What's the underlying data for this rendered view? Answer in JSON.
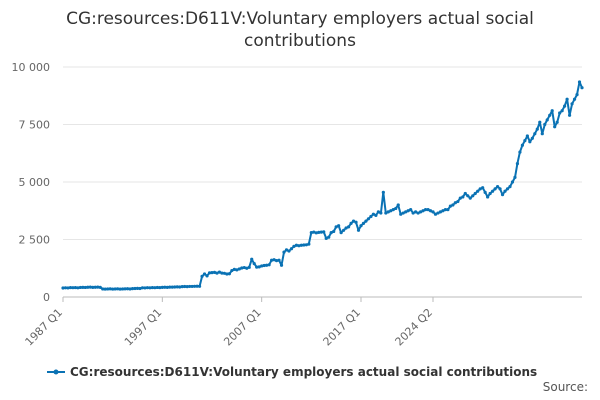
{
  "chart_data": {
    "type": "line",
    "title": "CG:resources:D611V:Voluntary employers actual social contributions",
    "title_lines": [
      "CG:resources:D611V:Voluntary employers actual social",
      "contributions"
    ],
    "xlabel": "",
    "ylabel": "",
    "x_start": "1987 Q1",
    "x_ticks": [
      "1987 Q1",
      "1997 Q1",
      "2007 Q1",
      "2017 Q1",
      "2024 Q2"
    ],
    "y_ticks": [
      "0",
      "2 500",
      "5 000",
      "7 500",
      "10 000"
    ],
    "y_tick_values": [
      0,
      2500,
      5000,
      7500,
      10000
    ],
    "ylim": [
      0,
      10000
    ],
    "grid": true,
    "legend_position": "bottom",
    "series": [
      {
        "name": "CG:resources:D611V:Voluntary employers actual social contributions",
        "color": "#0a72b4",
        "values": [
          390,
          400,
          395,
          410,
          405,
          410,
          400,
          415,
          420,
          415,
          425,
          430,
          420,
          425,
          430,
          420,
          350,
          345,
          350,
          355,
          345,
          350,
          355,
          345,
          350,
          355,
          360,
          350,
          365,
          370,
          375,
          370,
          400,
          395,
          405,
          400,
          410,
          405,
          415,
          410,
          420,
          425,
          420,
          430,
          430,
          435,
          440,
          435,
          450,
          455,
          450,
          460,
          460,
          465,
          470,
          465,
          900,
          1000,
          920,
          1050,
          1060,
          1070,
          1040,
          1080,
          1040,
          1030,
          1000,
          1010,
          1150,
          1200,
          1180,
          1220,
          1260,
          1280,
          1250,
          1290,
          1640,
          1450,
          1300,
          1310,
          1350,
          1370,
          1380,
          1400,
          1600,
          1620,
          1580,
          1600,
          1380,
          1950,
          2050,
          2000,
          2100,
          2200,
          2250,
          2230,
          2250,
          2260,
          2270,
          2300,
          2800,
          2820,
          2790,
          2810,
          2820,
          2830,
          2550,
          2600,
          2800,
          2850,
          3050,
          3100,
          2800,
          2900,
          3000,
          3050,
          3200,
          3300,
          3250,
          2900,
          3100,
          3200,
          3300,
          3400,
          3500,
          3600,
          3550,
          3700,
          3650,
          4550,
          3650,
          3700,
          3750,
          3800,
          3850,
          4000,
          3600,
          3650,
          3700,
          3750,
          3800,
          3650,
          3700,
          3650,
          3700,
          3750,
          3800,
          3800,
          3750,
          3700,
          3600,
          3650,
          3700,
          3750,
          3800,
          3800,
          3950,
          4000,
          4100,
          4150,
          4300,
          4350,
          4500,
          4400,
          4300,
          4400,
          4500,
          4600,
          4700,
          4750,
          4550,
          4350,
          4500,
          4600,
          4700,
          4800,
          4700,
          4450,
          4600,
          4700,
          4800,
          5000,
          5200,
          5800,
          6300,
          6600,
          6800,
          7000,
          6750,
          6900,
          7100,
          7300,
          7600,
          7100,
          7500,
          7700,
          7900,
          8100,
          7400,
          7600,
          8000,
          8100,
          8300,
          8600,
          7900,
          8400,
          8600,
          8800,
          9350,
          9100
        ]
      }
    ]
  },
  "source_label": "Source:"
}
